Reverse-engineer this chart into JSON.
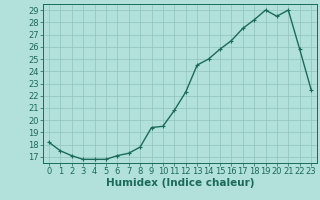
{
  "x": [
    0,
    1,
    2,
    3,
    4,
    5,
    6,
    7,
    8,
    9,
    10,
    11,
    12,
    13,
    14,
    15,
    16,
    17,
    18,
    19,
    20,
    21,
    22,
    23
  ],
  "y": [
    18.2,
    17.5,
    17.1,
    16.8,
    16.8,
    16.8,
    17.1,
    17.3,
    17.8,
    19.4,
    19.5,
    20.8,
    22.3,
    24.5,
    25.0,
    25.8,
    26.5,
    27.5,
    28.2,
    29.0,
    28.5,
    29.0,
    25.8,
    22.5
  ],
  "line_color": "#1a6b5a",
  "bg_color": "#b2e0db",
  "grid_color": "#90c4be",
  "xlabel": "Humidex (Indice chaleur)",
  "xlim": [
    -0.5,
    23.5
  ],
  "ylim": [
    16.5,
    29.5
  ],
  "yticks": [
    17,
    18,
    19,
    20,
    21,
    22,
    23,
    24,
    25,
    26,
    27,
    28,
    29
  ],
  "xticks": [
    0,
    1,
    2,
    3,
    4,
    5,
    6,
    7,
    8,
    9,
    10,
    11,
    12,
    13,
    14,
    15,
    16,
    17,
    18,
    19,
    20,
    21,
    22,
    23
  ],
  "tick_fontsize": 6.0,
  "xlabel_fontsize": 7.5,
  "marker": "+",
  "marker_size": 3,
  "line_width": 1.0
}
